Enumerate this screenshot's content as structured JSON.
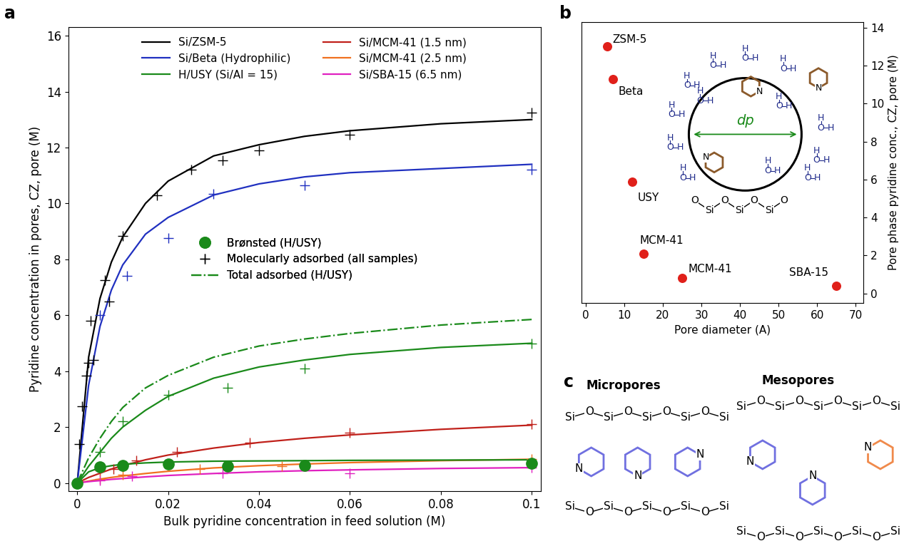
{
  "chart_data": [
    {
      "panel_label": "a",
      "type": "line",
      "x_label": "Bulk pyridine concentration in feed solution (M)",
      "y_label": "Pyridine concentration in pores, CZ, pore (M)",
      "xlim": [
        -0.002,
        0.102
      ],
      "xticks": [
        0,
        0.02,
        0.04,
        0.06,
        0.08,
        0.1
      ],
      "ylim": [
        -0.3,
        16.3
      ],
      "yticks": [
        0,
        2,
        4,
        6,
        8,
        10,
        12,
        14,
        16
      ],
      "series": [
        {
          "name": "Si/ZSM-5",
          "color": "#000000",
          "line_style": "solid",
          "legend": "upper center",
          "x": [
            0,
            0.0025,
            0.005,
            0.0075,
            0.01,
            0.015,
            0.02,
            0.03,
            0.04,
            0.05,
            0.06,
            0.08,
            0.1
          ],
          "values": [
            0,
            4.5,
            6.6,
            7.9,
            8.8,
            10.0,
            10.8,
            11.7,
            12.1,
            12.4,
            12.6,
            12.85,
            13.0
          ],
          "points": {
            "marker": "plus",
            "x": [
              0,
              0.0005,
              0.001,
              0.002,
              0.0025,
              0.003,
              0.0035,
              0.006,
              0.007,
              0.01,
              0.0175,
              0.025,
              0.032,
              0.04,
              0.06,
              0.1
            ],
            "values": [
              0,
              1.4,
              2.75,
              3.85,
              4.3,
              5.8,
              4.4,
              7.25,
              6.5,
              8.85,
              10.3,
              11.2,
              11.55,
              11.9,
              12.45,
              13.25
            ]
          }
        },
        {
          "name": "Si/Beta (Hydrophilic)",
          "color": "#2030c0",
          "line_style": "solid",
          "legend": "upper center",
          "x": [
            0,
            0.0025,
            0.005,
            0.0075,
            0.01,
            0.015,
            0.02,
            0.03,
            0.04,
            0.05,
            0.06,
            0.08,
            0.1
          ],
          "values": [
            0,
            3.5,
            5.6,
            6.9,
            7.8,
            8.9,
            9.5,
            10.3,
            10.7,
            10.95,
            11.1,
            11.25,
            11.4
          ],
          "points": {
            "marker": "plus",
            "x": [
              0.005,
              0.011,
              0.02,
              0.03,
              0.05,
              0.1
            ],
            "values": [
              6.0,
              7.4,
              8.75,
              10.35,
              10.65,
              11.2
            ]
          }
        },
        {
          "name": "H/USY (Si/Al = 15)",
          "color": "#1a8a1a",
          "line_style": "solid",
          "legend": "upper center",
          "x": [
            0,
            0.0025,
            0.005,
            0.0075,
            0.01,
            0.015,
            0.02,
            0.03,
            0.04,
            0.05,
            0.06,
            0.08,
            0.1
          ],
          "values": [
            0,
            0.6,
            1.1,
            1.6,
            2.0,
            2.6,
            3.1,
            3.75,
            4.15,
            4.4,
            4.6,
            4.85,
            5.0
          ],
          "points": {
            "marker": "plus",
            "x": [
              0.005,
              0.01,
              0.02,
              0.033,
              0.05,
              0.1
            ],
            "values": [
              1.1,
              2.2,
              3.15,
              3.4,
              4.1,
              5.0
            ]
          }
        },
        {
          "name": "Si/MCM-41 (1.5 nm)",
          "color": "#c0201a",
          "line_style": "solid",
          "legend": "upper center",
          "x": [
            0,
            0.0025,
            0.005,
            0.0075,
            0.01,
            0.015,
            0.02,
            0.03,
            0.04,
            0.05,
            0.06,
            0.08,
            0.1
          ],
          "values": [
            0,
            0.2,
            0.35,
            0.5,
            0.62,
            0.83,
            1.0,
            1.25,
            1.45,
            1.6,
            1.72,
            1.92,
            2.07
          ],
          "points": {
            "marker": "plus",
            "x": [
              0.005,
              0.008,
              0.013,
              0.022,
              0.038,
              0.06,
              0.1
            ],
            "values": [
              0.45,
              0.5,
              0.8,
              1.1,
              1.45,
              1.8,
              2.1
            ]
          }
        },
        {
          "name": "Si/MCM-41 (2.5 nm)",
          "color": "#f07020",
          "line_style": "solid",
          "legend": "upper center",
          "x": [
            0,
            0.0025,
            0.005,
            0.0075,
            0.01,
            0.015,
            0.02,
            0.03,
            0.04,
            0.05,
            0.06,
            0.08,
            0.1
          ],
          "values": [
            0,
            0.07,
            0.14,
            0.2,
            0.25,
            0.34,
            0.42,
            0.54,
            0.62,
            0.68,
            0.73,
            0.8,
            0.85
          ],
          "points": {
            "marker": "plus",
            "x": [
              0.005,
              0.01,
              0.027,
              0.045,
              0.1
            ],
            "values": [
              0.15,
              0.3,
              0.5,
              0.6,
              0.85
            ]
          }
        },
        {
          "name": "Si/SBA-15 (6.5 nm)",
          "color": "#e020c0",
          "line_style": "solid",
          "legend": "upper center",
          "x": [
            0,
            0.0025,
            0.005,
            0.0075,
            0.01,
            0.015,
            0.02,
            0.03,
            0.04,
            0.05,
            0.06,
            0.08,
            0.1
          ],
          "values": [
            0,
            0.05,
            0.09,
            0.13,
            0.16,
            0.22,
            0.27,
            0.34,
            0.4,
            0.44,
            0.47,
            0.52,
            0.55
          ],
          "points": {
            "marker": "plus",
            "x": [
              0.005,
              0.012,
              0.032,
              0.06,
              0.1
            ],
            "values": [
              0.1,
              0.25,
              0.35,
              0.35,
              0.55
            ]
          }
        },
        {
          "name": "Brønsted (H/USY)",
          "color": "#1a8a1a",
          "marker": "circle",
          "legend": "center",
          "x": [
            0,
            0.005,
            0.01,
            0.02,
            0.033,
            0.05,
            0.1
          ],
          "values": [
            0,
            0.58,
            0.63,
            0.68,
            0.6,
            0.62,
            0.7
          ],
          "fit": {
            "x": [
              0,
              0.0025,
              0.005,
              0.0075,
              0.01,
              0.015,
              0.02,
              0.03,
              0.04,
              0.05,
              0.06,
              0.08,
              0.1
            ],
            "values": [
              0,
              0.4,
              0.55,
              0.62,
              0.67,
              0.72,
              0.75,
              0.78,
              0.79,
              0.8,
              0.81,
              0.82,
              0.83
            ]
          }
        },
        {
          "name": "Molecularly adsorbed (all samples)",
          "color": "#000000",
          "marker": "plus",
          "legend": "center"
        },
        {
          "name": "Total adsorbed (H/USY)",
          "color": "#1a8a1a",
          "line_style": "dashdot",
          "legend": "center",
          "x": [
            0,
            0.0025,
            0.005,
            0.0075,
            0.01,
            0.015,
            0.02,
            0.03,
            0.04,
            0.05,
            0.06,
            0.08,
            0.1
          ],
          "values": [
            0,
            0.9,
            1.6,
            2.2,
            2.7,
            3.4,
            3.85,
            4.5,
            4.9,
            5.15,
            5.35,
            5.65,
            5.85
          ]
        }
      ]
    },
    {
      "panel_label": "b",
      "type": "scatter",
      "x_label": "Pore diameter (A)",
      "y_label": "Pore phase pyridine conc., CZ, pore (M)",
      "categories": [
        "ZSM-5",
        "Beta",
        "USY",
        "MCM-41",
        "MCM-41",
        "SBA-15"
      ],
      "x": [
        5.5,
        7,
        12,
        15,
        25,
        65
      ],
      "values": [
        13.0,
        11.3,
        5.9,
        2.1,
        0.8,
        0.4
      ],
      "color": "#e0201a",
      "xlim": [
        -1,
        72
      ],
      "xticks": [
        0,
        10,
        20,
        30,
        40,
        50,
        60,
        70
      ],
      "ylim": [
        -0.5,
        14.3
      ],
      "yticks": [
        0,
        2,
        4,
        6,
        8,
        10,
        12,
        14
      ],
      "inset": {
        "diameter_label": "dp",
        "wall_atoms": [
          "O",
          "Si",
          "O",
          "Si",
          "O",
          "Si",
          "O"
        ],
        "water_molecule": [
          "H",
          "O",
          "H"
        ],
        "pyridine_atom": "N"
      }
    }
  ],
  "diagram": {
    "panel_label": "c",
    "left_title": "Micropores",
    "right_title": "Mesopores",
    "wall_atoms": [
      "Si",
      "O",
      "Si",
      "O",
      "Si",
      "O",
      "Si",
      "O",
      "Si"
    ],
    "pyridine_atom": "N"
  }
}
